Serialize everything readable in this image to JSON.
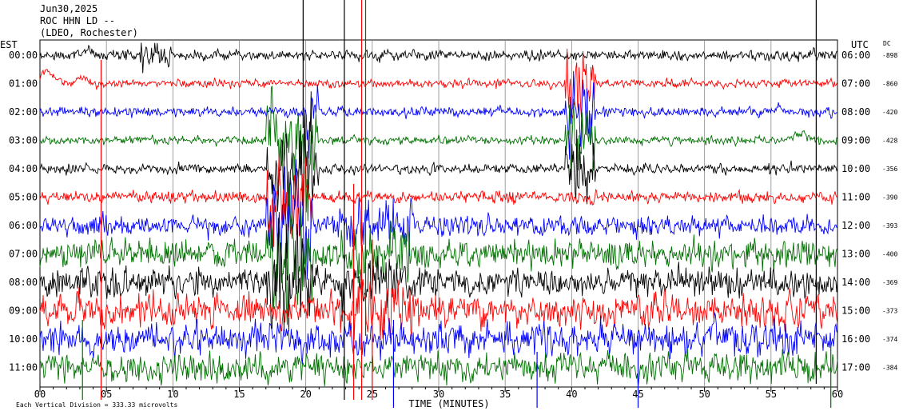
{
  "header": {
    "date": "Jun30,2025",
    "station": "ROC HHN LD --",
    "network": "(LDEO, Rochester)"
  },
  "chart_data": {
    "type": "line",
    "title": "",
    "left_axis_label": "EST",
    "right_axis_label": "UTC",
    "dc_label": "DC",
    "xlabel": "TIME (MINUTES)",
    "xlim": [
      0,
      60
    ],
    "x_ticks": [
      "00",
      "05",
      "10",
      "15",
      "20",
      "25",
      "30",
      "35",
      "40",
      "45",
      "50",
      "55",
      "60"
    ],
    "scale_note": "Each Vertical Division =  333.33 microvolts",
    "grid": true,
    "row_colors": [
      "#000000",
      "#ff0000",
      "#0000ff",
      "#007000"
    ],
    "rows": [
      {
        "est": "00:00",
        "utc": "06:00",
        "dc": "-898"
      },
      {
        "est": "01:00",
        "utc": "07:00",
        "dc": "-860"
      },
      {
        "est": "02:00",
        "utc": "08:00",
        "dc": "-420"
      },
      {
        "est": "03:00",
        "utc": "09:00",
        "dc": "-428"
      },
      {
        "est": "04:00",
        "utc": "10:00",
        "dc": "-356"
      },
      {
        "est": "05:00",
        "utc": "11:00",
        "dc": "-390"
      },
      {
        "est": "06:00",
        "utc": "12:00",
        "dc": "-393"
      },
      {
        "est": "07:00",
        "utc": "13:00",
        "dc": "-400"
      },
      {
        "est": "08:00",
        "utc": "14:00",
        "dc": "-369"
      },
      {
        "est": "09:00",
        "utc": "15:00",
        "dc": "-373"
      },
      {
        "est": "10:00",
        "utc": "16:00",
        "dc": "-374"
      },
      {
        "est": "11:00",
        "utc": "17:00",
        "dc": "-384"
      }
    ]
  }
}
